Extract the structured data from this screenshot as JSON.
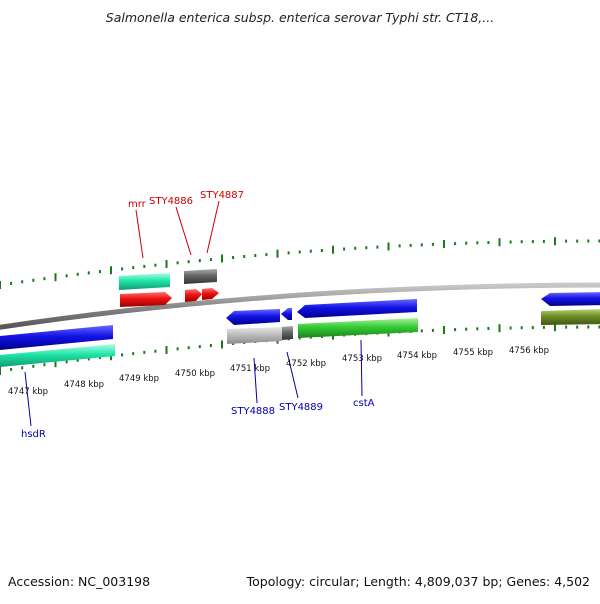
{
  "title": "Salmonella enterica subsp. enterica serovar Typhi str. CT18,...",
  "footer": {
    "accession": "Accession: NC_003198",
    "summary": "Topology: circular; Length: 4,809,037 bp; Genes: 4,502"
  },
  "colors": {
    "backbone": "#888888",
    "ticks": "#1a7a1a",
    "gene_blue": "#1010e0",
    "gene_red": "#ee1111",
    "gene_teal": "#20e6a8",
    "gene_green": "#33cc33",
    "gene_olive": "#6b8e23",
    "gene_gray": "#666666",
    "gene_lightgray": "#b8b8b8",
    "label_red": "#cc0000",
    "label_blue": "#0000aa"
  },
  "kbp_labels": [
    "4747 kbp",
    "4748 kbp",
    "4749 kbp",
    "4750 kbp",
    "4751 kbp",
    "4752 kbp",
    "4753 kbp",
    "4754 kbp",
    "4755 kbp",
    "4756 kbp"
  ],
  "gene_labels_top": [
    "mrr",
    "STY4886",
    "STY4887"
  ],
  "gene_labels_bottom": [
    "hsdR",
    "STY4888",
    "STY4889",
    "cstA"
  ]
}
